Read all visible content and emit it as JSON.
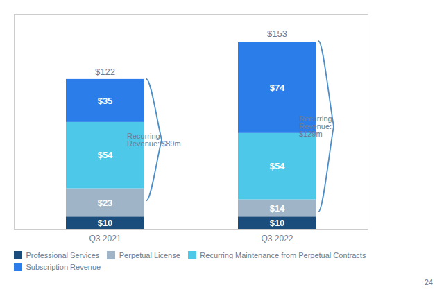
{
  "chart_data": {
    "type": "bar",
    "stacked": true,
    "data_labels": true,
    "tick_labels": "x",
    "categories": [
      "Q3 2021",
      "Q3 2022"
    ],
    "series": [
      {
        "name": "Professional Services",
        "color": "#1a4d7c",
        "values": [
          10,
          10
        ],
        "value_labels": [
          "$10",
          "$10"
        ]
      },
      {
        "name": "Perpetual License",
        "color": "#a0b4c8",
        "values": [
          23,
          14
        ],
        "value_labels": [
          "$23",
          "$14"
        ]
      },
      {
        "name": "Recurring Maintenance from Perpetual Contracts",
        "color": "#4dc8e8",
        "values": [
          54,
          54
        ],
        "value_labels": [
          "$54",
          "$54"
        ]
      },
      {
        "name": "Subscription Revenue",
        "color": "#2b7de9",
        "values": [
          35,
          74
        ],
        "value_labels": [
          "$35",
          "$74"
        ]
      }
    ],
    "totals": [
      122,
      153
    ],
    "total_labels": [
      "$122",
      "$153"
    ],
    "ylim": [
      0,
      175
    ],
    "grid": false,
    "legend": "bottom",
    "annotations": [
      {
        "category": "Q3 2021",
        "text": "Recurring\nRevenue: $89m",
        "ymin": 23,
        "ymax": 122,
        "color": "#4b8ec8"
      },
      {
        "category": "Q3 2022",
        "text": "Recurring\nRevenue:\n$129m",
        "ymin": 14,
        "ymax": 153,
        "color": "#4b8ec8"
      },
      {
        "text": "24"
      }
    ]
  }
}
